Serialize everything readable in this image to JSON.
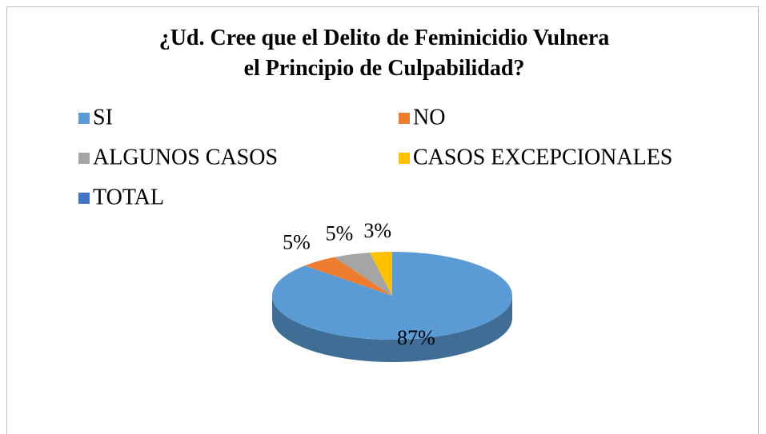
{
  "chart_data": {
    "type": "pie",
    "title": "¿Ud. Cree que el Delito de Feminicidio Vulnera el Principio de Culpabilidad?",
    "categories": [
      "SI",
      "NO",
      "ALGUNOS CASOS",
      "CASOS EXCEPCIONALES",
      "TOTAL"
    ],
    "values": [
      87,
      5,
      5,
      3,
      0
    ],
    "value_labels": [
      "87%",
      "5%",
      "5%",
      "3%",
      null
    ],
    "colors": [
      "#5b9bd5",
      "#ed7d31",
      "#a5a5a5",
      "#ffc000",
      "#4472c4"
    ],
    "legend": "top"
  }
}
